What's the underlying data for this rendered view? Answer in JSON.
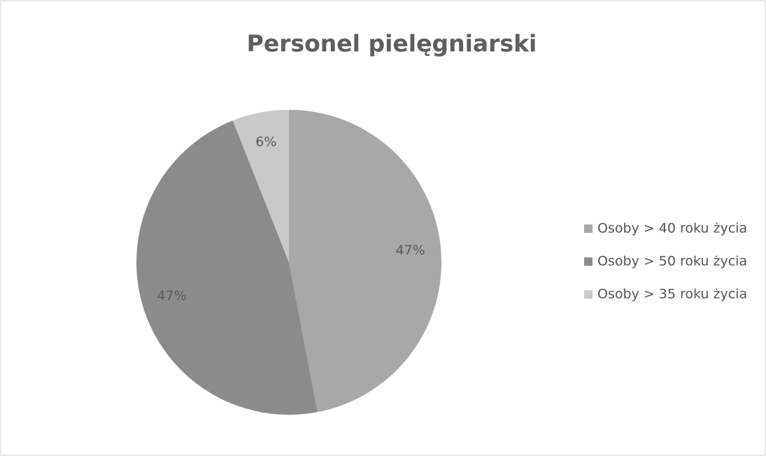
{
  "chart_data": {
    "type": "pie",
    "title": "Personel pielęgniarski",
    "categories": [
      "Osoby > 40 roku życia",
      "Osoby > 50 roku życia",
      "Osoby > 35 roku życia"
    ],
    "values": [
      47,
      47,
      6
    ],
    "value_labels": [
      "47%",
      "47%",
      "6%"
    ],
    "colors": [
      "#a8a8a8",
      "#8b8b8b",
      "#c9c9c9"
    ],
    "legend": "right"
  }
}
